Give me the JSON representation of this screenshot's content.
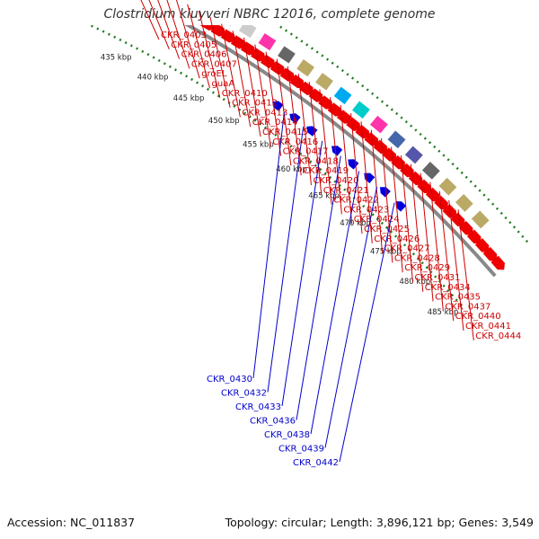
{
  "title": "Clostridium kluyveri NBRC 12016, complete genome",
  "footer": {
    "accession": "Accession: NC_011837",
    "summary": "Topology: circular; Length: 3,896,121 bp; Genes: 3,549"
  },
  "colors": {
    "forward_gene": "#ee0000",
    "reverse_gene": "#0000dd",
    "forward_label": "#cc0000",
    "reverse_label": "#0000cc",
    "backbone": "#888888",
    "tick_dots": "#1e7a1e"
  },
  "ticks": [
    "435 kbp",
    "440 kbp",
    "445 kbp",
    "450 kbp",
    "455 kbp",
    "460 kbp",
    "465 kbp",
    "470 kbp",
    "475 kbp",
    "480 kbp",
    "485 kbp"
  ],
  "forward_labels": [
    "CKR_0403",
    "CKR_0405",
    "CKR_0406",
    "CKR_0407",
    "groEL",
    "guaA",
    "CKR_0410",
    "CKR_0412",
    "CKR_0413",
    "CKR_0414",
    "CKR_0415",
    "CKR_0416",
    "CKR_0417",
    "CKR_0418",
    "CKR_0419",
    "CKR_0420",
    "CKR_0421",
    "CKR_0422",
    "CKR_0423",
    "CKR_0424",
    "CKR_0425",
    "CKR_0426",
    "CKR_0427",
    "CKR_0428",
    "CKR_0429",
    "CKR_0431",
    "CKR_0434",
    "CKR_0435",
    "CKR_0437",
    "CKR_0440",
    "CKR_0441",
    "CKR_0444"
  ],
  "reverse_labels": [
    "CKR_0430",
    "CKR_0432",
    "CKR_0433",
    "CKR_0436",
    "CKR_0438",
    "CKR_0439",
    "CKR_0442"
  ]
}
